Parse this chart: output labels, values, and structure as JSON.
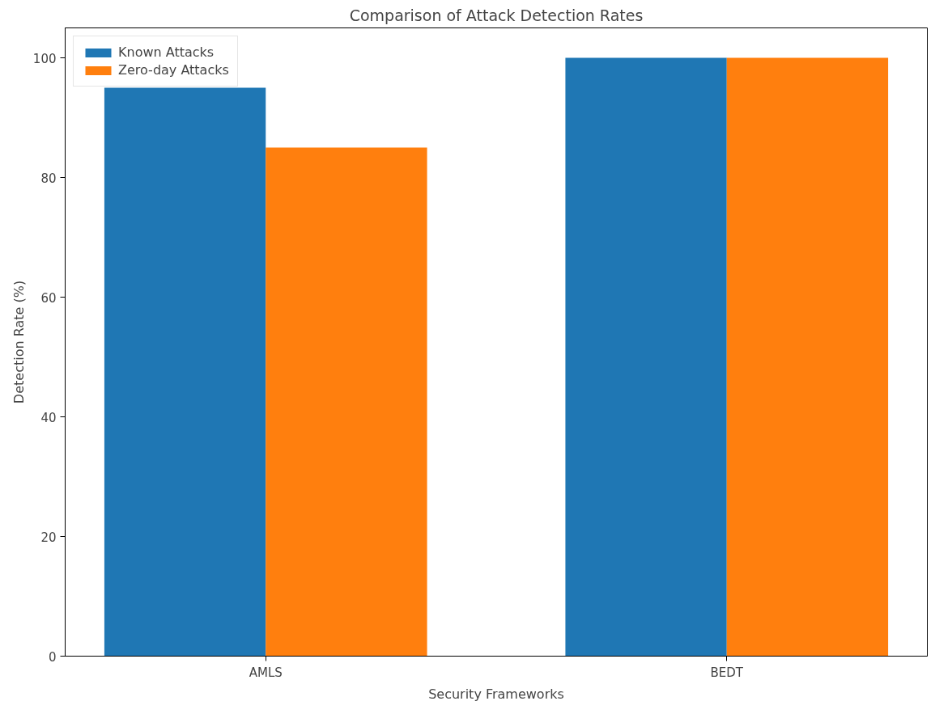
{
  "chart_data": {
    "type": "bar",
    "title": "Comparison of Attack Detection Rates",
    "xlabel": "Security Frameworks",
    "ylabel": "Detection Rate (%)",
    "categories": [
      "AMLS",
      "BEDT"
    ],
    "series": [
      {
        "name": "Known Attacks",
        "color": "#1f77b4",
        "values": [
          95,
          100
        ]
      },
      {
        "name": "Zero-day Attacks",
        "color": "#ff7f0e",
        "values": [
          85,
          100
        ]
      }
    ],
    "ylim": [
      0,
      105
    ],
    "yticks": [
      0,
      20,
      40,
      60,
      80,
      100
    ],
    "grid": false,
    "legend": "top left"
  }
}
